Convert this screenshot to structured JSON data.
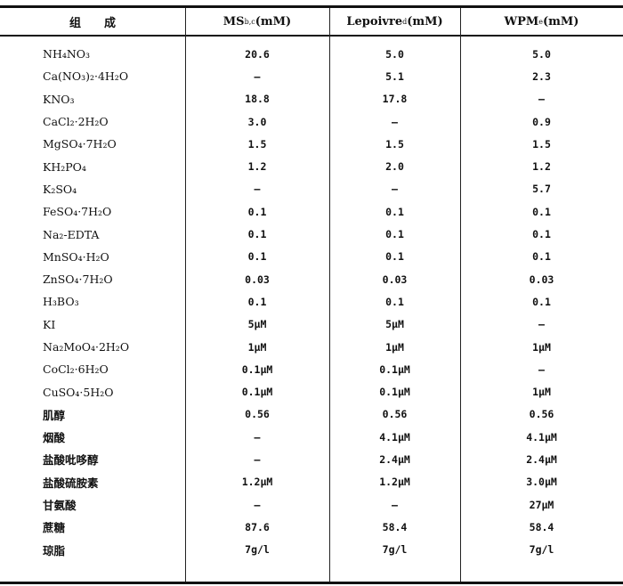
{
  "header": {
    "component": "组　　成",
    "ms": "MS",
    "ms_sup": "b,c",
    "ms_unit": "(mM)",
    "lep": "Lepoivre",
    "lep_sup": "d",
    "lep_unit": " (mM)",
    "wpm": "WPM",
    "wpm_sup": "e",
    "wpm_unit": "(mM)"
  },
  "rows": [
    {
      "name": "NH₄NO₃",
      "ms": "20.6",
      "lep": "5.0",
      "wpm": "5.0"
    },
    {
      "name": "Ca(NO₃)₂·4H₂O",
      "ms": "—",
      "lep": "5.1",
      "wpm": "2.3"
    },
    {
      "name": "KNO₃",
      "ms": "18.8",
      "lep": "17.8",
      "wpm": "—"
    },
    {
      "name": "CaCl₂·2H₂O",
      "ms": "3.0",
      "lep": "—",
      "wpm": "0.9"
    },
    {
      "name": "MgSO₄·7H₂O",
      "ms": "1.5",
      "lep": "1.5",
      "wpm": "1.5"
    },
    {
      "name": "KH₂PO₄",
      "ms": "1.2",
      "lep": "2.0",
      "wpm": "1.2"
    },
    {
      "name": "K₂SO₄",
      "ms": "—",
      "lep": "—",
      "wpm": "5.7"
    },
    {
      "name": "FeSO₄·7H₂O",
      "ms": "0.1",
      "lep": "0.1",
      "wpm": "0.1"
    },
    {
      "name": "Na₂-EDTA",
      "ms": "0.1",
      "lep": "0.1",
      "wpm": "0.1"
    },
    {
      "name": "MnSO₄·H₂O",
      "ms": "0.1",
      "lep": "0.1",
      "wpm": "0.1"
    },
    {
      "name": "ZnSO₄·7H₂O",
      "ms": "0.03",
      "lep": "0.03",
      "wpm": "0.03"
    },
    {
      "name": "H₃BO₃",
      "ms": "0.1",
      "lep": "0.1",
      "wpm": "0.1"
    },
    {
      "name": "KI",
      "ms": "5μM",
      "lep": "5μM",
      "wpm": "—"
    },
    {
      "name": "Na₂MoO₄·2H₂O",
      "ms": "1μM",
      "lep": "1μM",
      "wpm": "1μM"
    },
    {
      "name": "CoCl₂·6H₂O",
      "ms": "0.1μM",
      "lep": "0.1μM",
      "wpm": "—"
    },
    {
      "name": "CuSO₄·5H₂O",
      "ms": "0.1μM",
      "lep": "0.1μM",
      "wpm": "1μM"
    },
    {
      "name": "肌醇",
      "ms": "0.56",
      "lep": "0.56",
      "wpm": "0.56",
      "cn": true
    },
    {
      "name": "烟酸",
      "ms": "—",
      "lep": "4.1μM",
      "wpm": "4.1μM",
      "cn": true
    },
    {
      "name": "盐酸吡哆醇",
      "ms": "—",
      "lep": "2.4μM",
      "wpm": "2.4μM",
      "cn": true
    },
    {
      "name": "盐酸硫胺素",
      "ms": "1.2μM",
      "lep": "1.2μM",
      "wpm": "3.0μM",
      "cn": true
    },
    {
      "name": "甘氨酸",
      "ms": "—",
      "lep": "—",
      "wpm": "27μM",
      "cn": true
    },
    {
      "name": "蔗糖",
      "ms": "87.6",
      "lep": "58.4",
      "wpm": "58.4",
      "cn": true
    },
    {
      "name": "琼脂",
      "ms": "7g/l",
      "lep": "7g/l",
      "wpm": "7g/l",
      "cn": true
    }
  ]
}
